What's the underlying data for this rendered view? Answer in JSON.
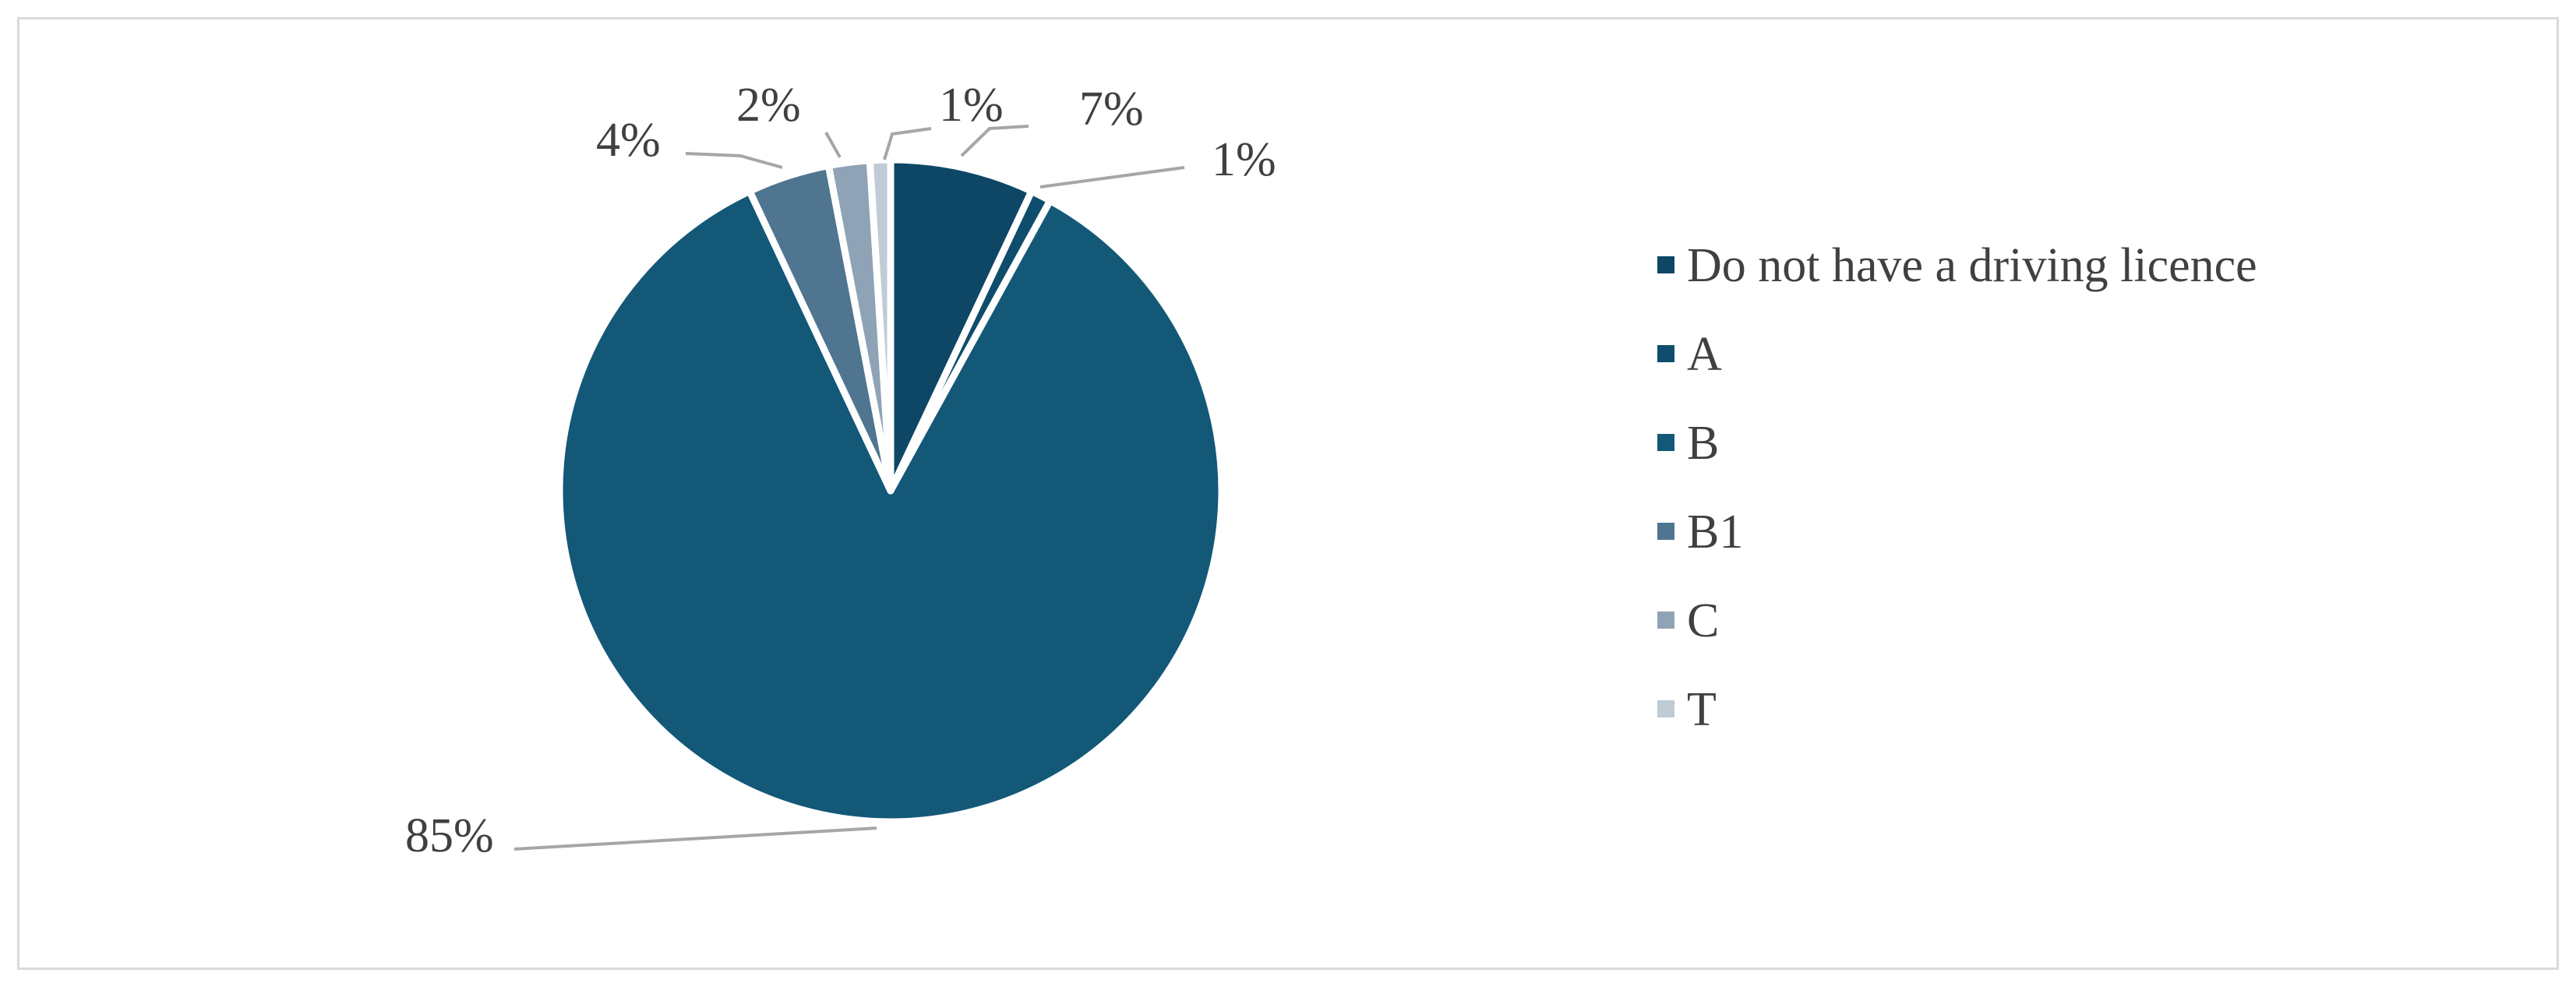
{
  "chart_data": {
    "type": "pie",
    "title": "",
    "slices": [
      {
        "label": "Do not have a driving licence",
        "value": 7,
        "display": "7%",
        "color": "#0e4765"
      },
      {
        "label": "A",
        "value": 1,
        "display": "1%",
        "color": "#0e4d6c"
      },
      {
        "label": "B",
        "value": 85,
        "display": "85%",
        "color": "#145878"
      },
      {
        "label": "B1",
        "value": 4,
        "display": "4%",
        "color": "#4f7590"
      },
      {
        "label": "C",
        "value": 2,
        "display": "2%",
        "color": "#8ea3b5"
      },
      {
        "label": "T",
        "value": 1,
        "display": "1%",
        "color": "#bfcbd5"
      }
    ],
    "legend_position": "right",
    "start_angle": "top, clockwise",
    "leader_line_color": "#a6a6a6"
  }
}
